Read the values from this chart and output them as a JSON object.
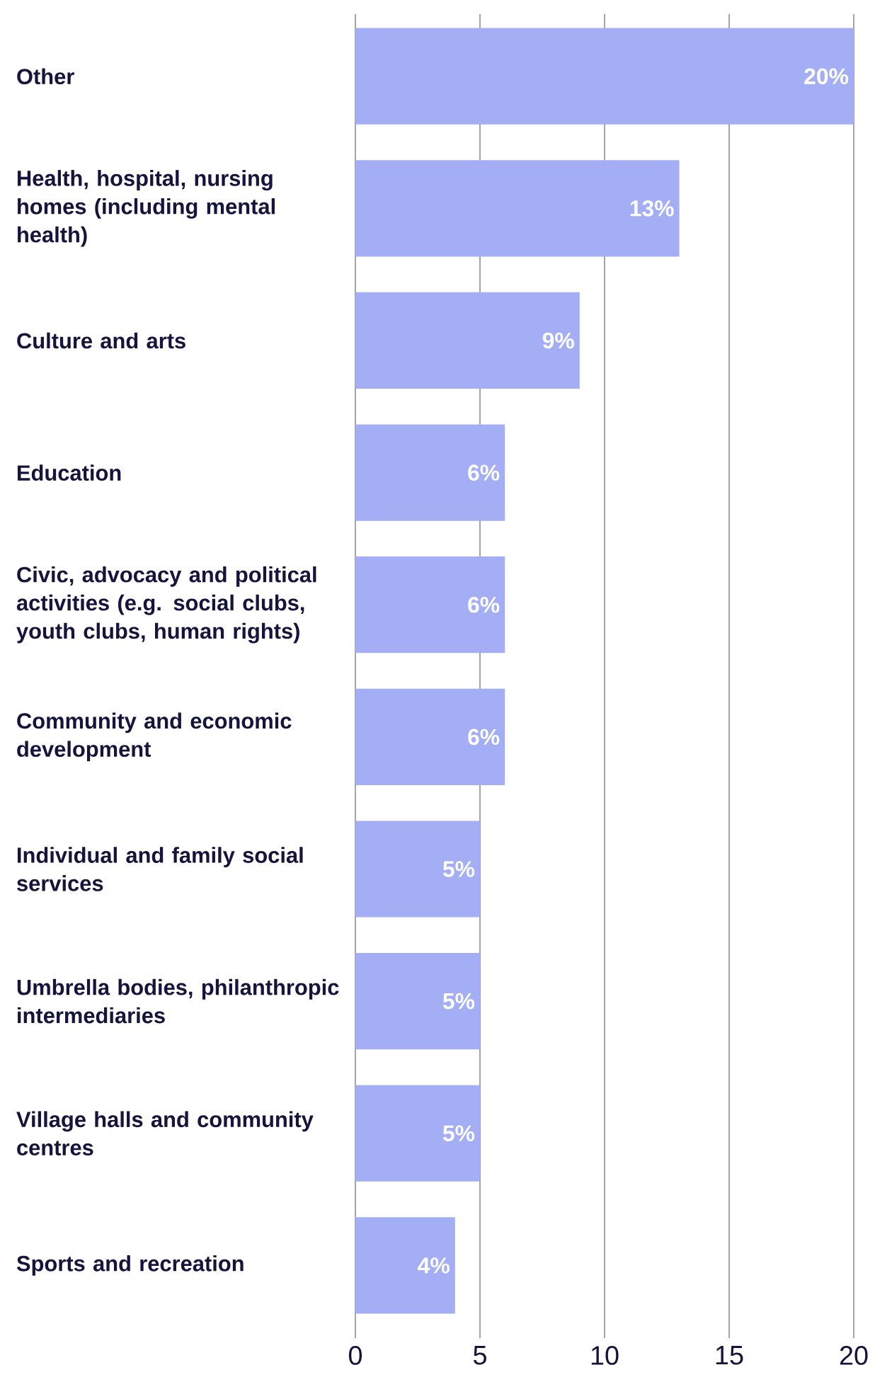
{
  "chart_data": {
    "type": "bar",
    "orientation": "horizontal",
    "color": "#a3aef5",
    "categories": [
      "Other",
      "Health, hospital, nursing homes (including mental health)",
      "Culture and arts",
      "Education",
      "Civic, advocacy and political activities (e.g. social clubs, youth clubs, human rights)",
      "Community and economic development",
      "Individual and family social services",
      "Umbrella bodies, philanthropic intermediaries",
      "Village halls and community centres",
      "Sports and recreation"
    ],
    "values": [
      20,
      13,
      9,
      6,
      6,
      6,
      5,
      5,
      5,
      4
    ],
    "value_labels": [
      "20%",
      "13%",
      "9%",
      "6%",
      "6%",
      "6%",
      "5%",
      "5%",
      "5%",
      "4%"
    ],
    "xlim": [
      0,
      20
    ],
    "xticks": [
      0,
      5,
      10,
      15,
      20
    ],
    "grid": "x"
  }
}
